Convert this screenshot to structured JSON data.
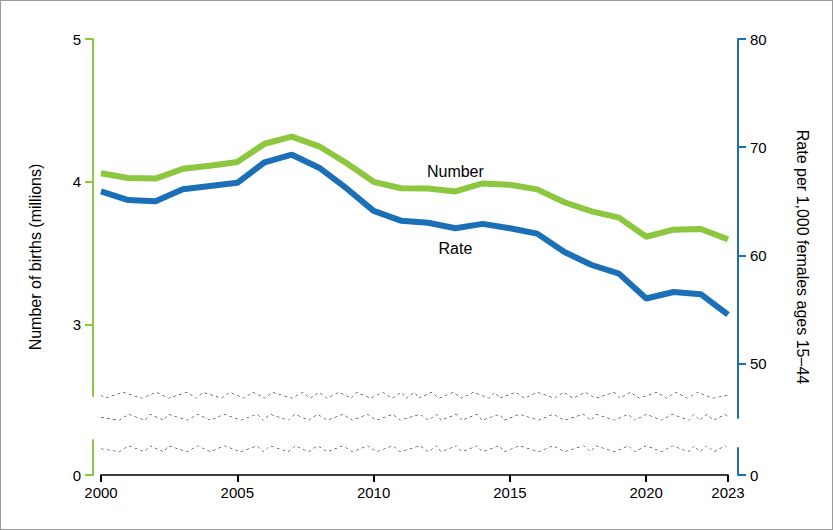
{
  "chart_data": {
    "type": "line",
    "x": [
      2000,
      2001,
      2002,
      2003,
      2004,
      2005,
      2006,
      2007,
      2008,
      2009,
      2010,
      2011,
      2012,
      2013,
      2014,
      2015,
      2016,
      2017,
      2018,
      2019,
      2020,
      2021,
      2022,
      2023
    ],
    "xlim": [
      2000,
      2023
    ],
    "xticks": [
      2000,
      2005,
      2010,
      2015,
      2020,
      2023
    ],
    "ylabel": "Number of births (millions)",
    "ylim": [
      0,
      5
    ],
    "yticks": [
      0,
      3,
      4,
      5
    ],
    "y2label": "Rate per 1,000 females ages 15–44",
    "y2lim": [
      0,
      80
    ],
    "y2ticks": [
      0,
      50,
      60,
      70,
      80
    ],
    "grid": false,
    "series": [
      {
        "name": "Number",
        "color": "#8dc63f",
        "values": [
          4.059,
          4.026,
          4.022,
          4.09,
          4.112,
          4.138,
          4.266,
          4.316,
          4.248,
          4.131,
          3.999,
          3.954,
          3.953,
          3.932,
          3.988,
          3.978,
          3.946,
          3.856,
          3.792,
          3.748,
          3.614,
          3.664,
          3.668,
          3.596
        ]
      },
      {
        "name": "Rate",
        "color": "#1b6fb7",
        "axis": "y2",
        "values": [
          65.9,
          65.1,
          65.0,
          66.1,
          66.4,
          66.7,
          68.6,
          69.3,
          68.1,
          66.2,
          64.1,
          63.2,
          63.0,
          62.5,
          62.9,
          62.5,
          62.0,
          60.3,
          59.1,
          58.3,
          56.0,
          56.6,
          56.4,
          54.5
        ]
      }
    ]
  }
}
